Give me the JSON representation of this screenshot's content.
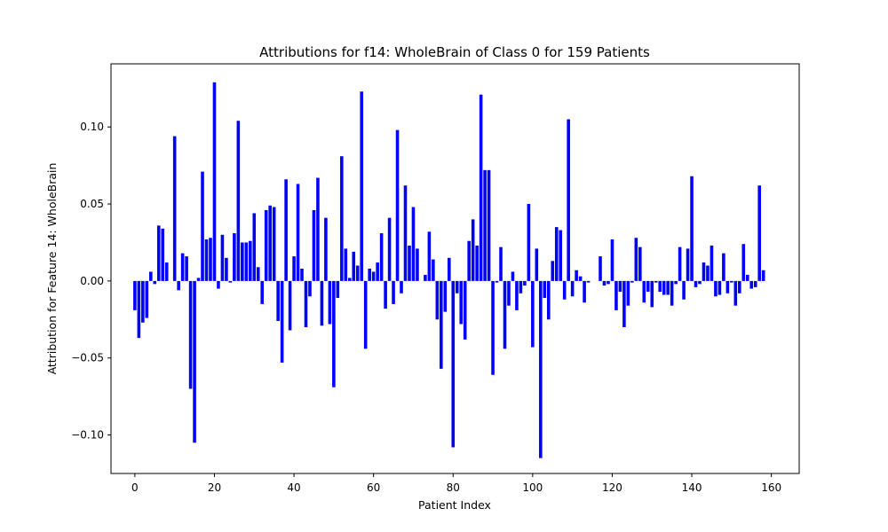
{
  "chart_data": {
    "type": "bar",
    "title": "Attributions for f14: WholeBrain of Class 0 for 159 Patients",
    "xlabel": "Patient Index",
    "ylabel": "Attribution for Feature 14: WholeBrain",
    "xlim": [
      -6,
      167
    ],
    "ylim": [
      -0.125,
      0.141
    ],
    "xticks": [
      0,
      20,
      40,
      60,
      80,
      100,
      120,
      140,
      160
    ],
    "xtick_labels": [
      "0",
      "20",
      "40",
      "60",
      "80",
      "100",
      "120",
      "140",
      "160"
    ],
    "yticks": [
      -0.1,
      -0.05,
      0.0,
      0.05,
      0.1
    ],
    "ytick_labels": [
      "−0.10",
      "−0.05",
      "0.00",
      "0.05",
      "0.10"
    ],
    "grid": false,
    "colors": {
      "bar": "#0000ff",
      "axis": "#000000",
      "background": "#ffffff"
    },
    "x": [
      0,
      1,
      2,
      3,
      4,
      5,
      6,
      7,
      8,
      9,
      10,
      11,
      12,
      13,
      14,
      15,
      16,
      17,
      18,
      19,
      20,
      21,
      22,
      23,
      24,
      25,
      26,
      27,
      28,
      29,
      30,
      31,
      32,
      33,
      34,
      35,
      36,
      37,
      38,
      39,
      40,
      41,
      42,
      43,
      44,
      45,
      46,
      47,
      48,
      49,
      50,
      51,
      52,
      53,
      54,
      55,
      56,
      57,
      58,
      59,
      60,
      61,
      62,
      63,
      64,
      65,
      66,
      67,
      68,
      69,
      70,
      71,
      72,
      73,
      74,
      75,
      76,
      77,
      78,
      79,
      80,
      81,
      82,
      83,
      84,
      85,
      86,
      87,
      88,
      89,
      90,
      91,
      92,
      93,
      94,
      95,
      96,
      97,
      98,
      99,
      100,
      101,
      102,
      103,
      104,
      105,
      106,
      107,
      108,
      109,
      110,
      111,
      112,
      113,
      114,
      115,
      116,
      117,
      118,
      119,
      120,
      121,
      122,
      123,
      124,
      125,
      126,
      127,
      128,
      129,
      130,
      131,
      132,
      133,
      134,
      135,
      136,
      137,
      138,
      139,
      140,
      141,
      142,
      143,
      144,
      145,
      146,
      147,
      148,
      149,
      150,
      151,
      152,
      153,
      154,
      155,
      156,
      157,
      158
    ],
    "values": [
      -0.019,
      -0.037,
      -0.027,
      -0.024,
      0.006,
      -0.002,
      0.036,
      0.034,
      0.012,
      0.0,
      0.094,
      -0.006,
      0.018,
      0.016,
      -0.07,
      -0.105,
      0.002,
      0.071,
      0.027,
      0.028,
      0.129,
      -0.005,
      0.03,
      0.015,
      -0.001,
      0.031,
      0.104,
      0.025,
      0.025,
      0.026,
      0.044,
      0.009,
      -0.015,
      0.046,
      0.049,
      0.048,
      -0.026,
      -0.053,
      0.066,
      -0.032,
      0.016,
      0.063,
      0.008,
      -0.03,
      -0.01,
      0.046,
      0.067,
      -0.029,
      0.041,
      -0.028,
      -0.069,
      -0.011,
      0.081,
      0.021,
      0.002,
      0.019,
      0.01,
      0.123,
      -0.044,
      0.008,
      0.006,
      0.012,
      0.031,
      -0.018,
      0.041,
      -0.015,
      0.098,
      -0.008,
      0.062,
      0.023,
      0.048,
      0.021,
      0.0,
      0.004,
      0.032,
      0.014,
      -0.025,
      -0.057,
      -0.02,
      0.015,
      -0.108,
      -0.008,
      -0.028,
      -0.038,
      0.026,
      0.04,
      0.023,
      0.121,
      0.072,
      0.072,
      -0.061,
      -0.001,
      0.022,
      -0.044,
      -0.016,
      0.006,
      -0.019,
      -0.008,
      -0.003,
      0.05,
      -0.043,
      0.021,
      -0.115,
      -0.011,
      -0.025,
      0.013,
      0.035,
      0.033,
      -0.012,
      0.105,
      -0.01,
      0.007,
      0.003,
      -0.014,
      -0.001,
      0.0,
      0.0,
      0.016,
      -0.003,
      -0.002,
      0.027,
      -0.019,
      -0.007,
      -0.03,
      -0.016,
      -0.001,
      0.028,
      0.022,
      -0.014,
      -0.007,
      -0.017,
      -0.001,
      -0.007,
      -0.009,
      -0.009,
      -0.016,
      -0.002,
      0.022,
      -0.012,
      0.021,
      0.068,
      -0.004,
      -0.002,
      0.012,
      0.01,
      0.023,
      -0.01,
      -0.009,
      0.018,
      -0.008,
      -0.001,
      -0.016,
      -0.008,
      0.024,
      0.004,
      -0.005,
      -0.004,
      0.062,
      0.007
    ]
  }
}
